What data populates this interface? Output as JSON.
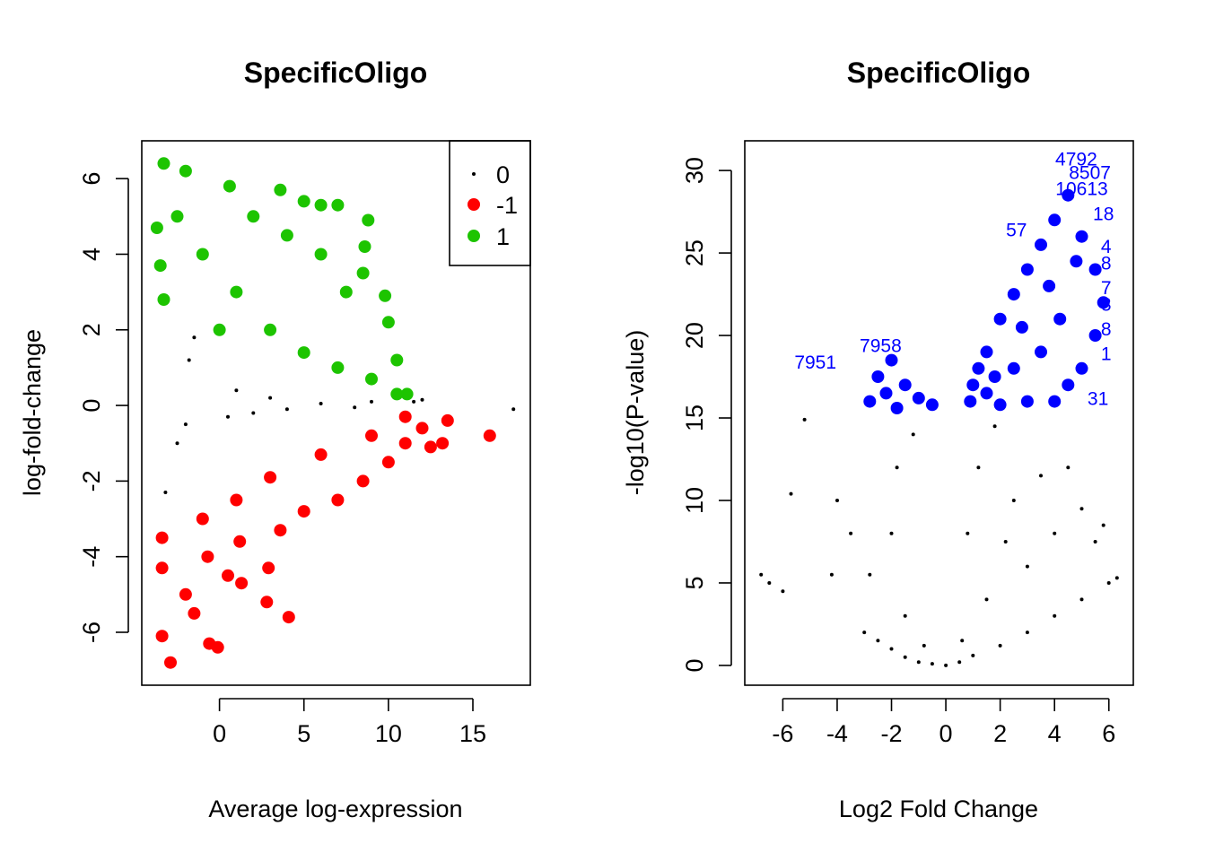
{
  "colors": {
    "background": "#ffffff",
    "neutral": "#000000",
    "down": "#ff0000",
    "up": "#1dc400",
    "label": "#0000ff"
  },
  "chart_data": [
    {
      "type": "scatter",
      "title": "SpecificOligo",
      "xlabel": "Average log-expression",
      "ylabel": "log-fold-change",
      "xlim": [
        -4.6,
        18.4
      ],
      "ylim": [
        -7.4,
        7.0
      ],
      "x_ticks": [
        0,
        5,
        10,
        15
      ],
      "y_ticks": [
        -6,
        -4,
        -2,
        0,
        2,
        4,
        6
      ],
      "grid": false,
      "legend_position": "top-right",
      "legend": [
        {
          "label": "0",
          "color": "#000000",
          "marker": "small-dot"
        },
        {
          "label": "-1",
          "color": "#ff0000",
          "marker": "large-dot"
        },
        {
          "label": "1",
          "color": "#1dc400",
          "marker": "large-dot"
        }
      ],
      "series": [
        {
          "name": "0",
          "color": "#000000",
          "marker": "small-dot",
          "points": [
            [
              17.4,
              -0.1
            ],
            [
              12.0,
              0.15
            ],
            [
              -2.5,
              -1.0
            ],
            [
              -3.2,
              -2.3
            ],
            [
              -1.5,
              1.8
            ],
            [
              1.0,
              0.4
            ],
            [
              3.0,
              0.2
            ],
            [
              6.0,
              0.05
            ],
            [
              9.0,
              0.1
            ],
            [
              11.5,
              0.1
            ],
            [
              -2.0,
              -0.5
            ],
            [
              -1.8,
              1.2
            ],
            [
              0.5,
              -0.3
            ],
            [
              2.0,
              -0.2
            ],
            [
              4.0,
              -0.1
            ],
            [
              8.0,
              -0.05
            ]
          ]
        },
        {
          "name": "-1",
          "color": "#ff0000",
          "marker": "large-dot",
          "points": [
            [
              16.0,
              -0.8
            ],
            [
              13.5,
              -0.4
            ],
            [
              13.2,
              -1.0
            ],
            [
              12.5,
              -1.1
            ],
            [
              -2.9,
              -6.8
            ],
            [
              -0.1,
              -6.4
            ],
            [
              -0.6,
              -6.3
            ],
            [
              -3.4,
              -6.1
            ],
            [
              4.1,
              -5.6
            ],
            [
              2.8,
              -5.2
            ],
            [
              -3.4,
              -3.5
            ],
            [
              -3.4,
              -4.3
            ],
            [
              1.3,
              -4.7
            ],
            [
              2.9,
              -4.3
            ],
            [
              -0.7,
              -4.0
            ],
            [
              1.2,
              -3.6
            ],
            [
              -2.0,
              -5.0
            ],
            [
              -1.5,
              -5.5
            ],
            [
              0.5,
              -4.5
            ],
            [
              3.6,
              -3.3
            ],
            [
              5.0,
              -2.8
            ],
            [
              7.0,
              -2.5
            ],
            [
              8.5,
              -2.0
            ],
            [
              10.0,
              -1.5
            ],
            [
              11.0,
              -1.0
            ],
            [
              12.0,
              -0.6
            ],
            [
              -1.0,
              -3.0
            ],
            [
              1.0,
              -2.5
            ],
            [
              3.0,
              -1.9
            ],
            [
              6.0,
              -1.3
            ],
            [
              9.0,
              -0.8
            ],
            [
              11.0,
              -0.3
            ]
          ]
        },
        {
          "name": "1",
          "color": "#1dc400",
          "marker": "large-dot",
          "points": [
            [
              -3.3,
              6.4
            ],
            [
              -2.0,
              6.2
            ],
            [
              0.6,
              5.8
            ],
            [
              3.6,
              5.7
            ],
            [
              5.0,
              5.4
            ],
            [
              6.0,
              5.3
            ],
            [
              7.0,
              5.3
            ],
            [
              8.8,
              4.9
            ],
            [
              8.6,
              4.2
            ],
            [
              8.5,
              3.5
            ],
            [
              9.8,
              2.9
            ],
            [
              10.0,
              2.2
            ],
            [
              10.5,
              1.2
            ],
            [
              11.1,
              0.3
            ],
            [
              10.5,
              0.3
            ],
            [
              -3.7,
              4.7
            ],
            [
              -3.5,
              3.7
            ],
            [
              -3.3,
              2.8
            ],
            [
              -2.5,
              5.0
            ],
            [
              -1.0,
              4.0
            ],
            [
              1.0,
              3.0
            ],
            [
              3.0,
              2.0
            ],
            [
              5.0,
              1.4
            ],
            [
              7.0,
              1.0
            ],
            [
              9.0,
              0.7
            ],
            [
              2.0,
              5.0
            ],
            [
              4.0,
              4.5
            ],
            [
              6.0,
              4.0
            ],
            [
              7.5,
              3.0
            ],
            [
              0.0,
              2.0
            ]
          ]
        }
      ]
    },
    {
      "type": "scatter",
      "title": "SpecificOligo",
      "xlabel": "Log2 Fold Change",
      "ylabel": "-log10(P-value)",
      "xlim": [
        -7.4,
        6.9
      ],
      "ylim": [
        -1.2,
        31.8
      ],
      "x_ticks": [
        -6,
        -4,
        -2,
        0,
        2,
        4,
        6
      ],
      "y_ticks": [
        0,
        5,
        10,
        15,
        20,
        25,
        30
      ],
      "grid": false,
      "series": [
        {
          "name": "",
          "color": "#000000",
          "marker": "small-dot",
          "points": [
            [
              -6.8,
              5.5
            ],
            [
              -6.5,
              5.0
            ],
            [
              -6.0,
              4.5
            ],
            [
              -5.7,
              10.4
            ],
            [
              -5.2,
              14.9
            ],
            [
              -4.2,
              5.5
            ],
            [
              -4.0,
              10.0
            ],
            [
              -3.0,
              2.0
            ],
            [
              -2.5,
              1.5
            ],
            [
              -2.0,
              1.0
            ],
            [
              -1.5,
              0.5
            ],
            [
              -1.0,
              0.2
            ],
            [
              -0.5,
              0.1
            ],
            [
              0.0,
              0.0
            ],
            [
              0.5,
              0.2
            ],
            [
              1.0,
              0.6
            ],
            [
              2.0,
              1.2
            ],
            [
              3.0,
              2.0
            ],
            [
              4.0,
              3.0
            ],
            [
              5.0,
              4.0
            ],
            [
              6.0,
              5.0
            ],
            [
              6.3,
              5.3
            ],
            [
              5.8,
              8.5
            ],
            [
              5.5,
              7.5
            ],
            [
              -2.0,
              8.0
            ],
            [
              -1.8,
              12.0
            ],
            [
              -1.2,
              14.0
            ],
            [
              0.8,
              8.0
            ],
            [
              1.2,
              12.0
            ],
            [
              1.8,
              14.5
            ],
            [
              2.5,
              10.0
            ],
            [
              3.0,
              6.0
            ],
            [
              4.0,
              8.0
            ],
            [
              4.5,
              12.0
            ],
            [
              -3.5,
              8.0
            ],
            [
              -2.8,
              5.5
            ],
            [
              -1.5,
              3.0
            ],
            [
              -0.8,
              1.2
            ],
            [
              0.6,
              1.5
            ],
            [
              1.5,
              4.0
            ],
            [
              2.2,
              7.5
            ],
            [
              3.5,
              11.5
            ],
            [
              5.0,
              9.5
            ]
          ]
        },
        {
          "name": "",
          "color": "#0000ff",
          "marker": "large-dot",
          "points": [
            [
              -2.8,
              16.0
            ],
            [
              -2.5,
              17.5
            ],
            [
              -2.0,
              18.5
            ],
            [
              -1.5,
              17.0
            ],
            [
              -1.0,
              16.2
            ],
            [
              -0.5,
              15.8
            ],
            [
              -2.2,
              16.5
            ],
            [
              -1.8,
              15.6
            ],
            [
              0.9,
              16.0
            ],
            [
              1.0,
              17.0
            ],
            [
              1.2,
              18.0
            ],
            [
              1.5,
              19.0
            ],
            [
              2.0,
              21.0
            ],
            [
              2.5,
              22.5
            ],
            [
              3.0,
              24.0
            ],
            [
              3.5,
              25.5
            ],
            [
              4.0,
              27.0
            ],
            [
              4.5,
              28.5
            ],
            [
              5.0,
              26.0
            ],
            [
              5.5,
              24.0
            ],
            [
              5.8,
              22.0
            ],
            [
              5.5,
              20.0
            ],
            [
              5.0,
              18.0
            ],
            [
              4.5,
              17.0
            ],
            [
              4.0,
              16.0
            ],
            [
              3.0,
              16.0
            ],
            [
              2.0,
              15.8
            ],
            [
              1.5,
              16.5
            ],
            [
              2.5,
              18.0
            ],
            [
              3.5,
              19.0
            ],
            [
              4.2,
              21.0
            ],
            [
              3.8,
              23.0
            ],
            [
              4.8,
              24.5
            ],
            [
              2.8,
              20.5
            ],
            [
              1.8,
              17.5
            ]
          ]
        }
      ],
      "annotations": [
        {
          "text": "4792",
          "x": 4.8,
          "y": 30.3
        },
        {
          "text": "8507",
          "x": 5.3,
          "y": 29.5
        },
        {
          "text": "10613",
          "x": 5.0,
          "y": 28.5
        },
        {
          "text": "7958",
          "x": -2.4,
          "y": 19.0
        },
        {
          "text": "7951",
          "x": -4.8,
          "y": 18.0
        },
        {
          "text": "57",
          "x": 2.6,
          "y": 26.0
        },
        {
          "text": "18",
          "x": 5.8,
          "y": 27.0
        },
        {
          "text": "4",
          "x": 5.9,
          "y": 25.0
        },
        {
          "text": "8",
          "x": 5.9,
          "y": 24.0
        },
        {
          "text": "7",
          "x": 5.9,
          "y": 22.5
        },
        {
          "text": "3",
          "x": 5.9,
          "y": 21.5
        },
        {
          "text": "8",
          "x": 5.9,
          "y": 20.0
        },
        {
          "text": "1",
          "x": 5.9,
          "y": 18.5
        },
        {
          "text": "31",
          "x": 5.6,
          "y": 15.8
        }
      ]
    }
  ]
}
